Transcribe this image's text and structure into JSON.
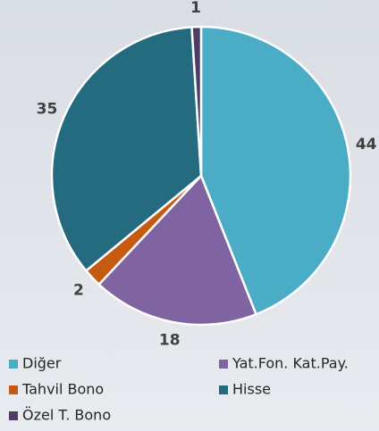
{
  "chart_data": {
    "type": "pie",
    "categories": [
      "Diğer",
      "Yat.Fon. Kat.Pay.",
      "Tahvil Bono",
      "Hisse",
      "Özel T. Bono"
    ],
    "values": [
      44,
      18,
      2,
      35,
      1
    ],
    "colors": [
      "#4bacc6",
      "#8064a2",
      "#c55a11",
      "#246b7f",
      "#4e3b66"
    ],
    "legend": "bottom"
  }
}
